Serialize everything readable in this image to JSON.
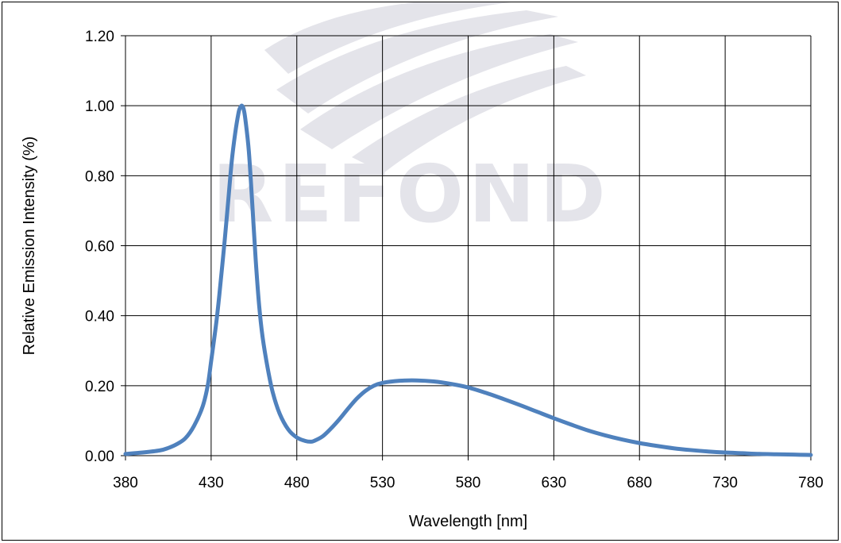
{
  "watermark": {
    "logo_text": "REFOND",
    "color": "#e4e4ea"
  },
  "chart_data": {
    "type": "line",
    "title": "",
    "xlabel": "Wavelength  [nm]",
    "ylabel": "Relative Emission Intensity (%)",
    "xlim": [
      380,
      780
    ],
    "ylim": [
      0,
      1.2
    ],
    "x_ticks": [
      "380",
      "430",
      "480",
      "530",
      "580",
      "630",
      "680",
      "730",
      "780"
    ],
    "y_ticks": [
      "0.00",
      "0.20",
      "0.40",
      "0.60",
      "0.80",
      "1.00",
      "1.20"
    ],
    "grid": true,
    "legend": "none",
    "series": [
      {
        "color": "#4f81bd",
        "x": [
          380,
          390,
          400,
          405,
          410,
          415,
          420,
          425,
          428,
          430,
          433,
          435,
          438,
          440,
          442,
          444,
          446,
          447,
          448,
          449,
          450,
          452,
          454,
          456,
          458,
          460,
          463,
          466,
          470,
          475,
          480,
          485,
          488,
          490,
          495,
          500,
          505,
          510,
          515,
          520,
          525,
          530,
          540,
          550,
          560,
          570,
          580,
          590,
          600,
          610,
          620,
          630,
          640,
          650,
          660,
          670,
          680,
          690,
          700,
          710,
          720,
          730,
          740,
          750,
          760,
          770,
          780
        ],
        "y": [
          0.005,
          0.009,
          0.015,
          0.022,
          0.033,
          0.05,
          0.085,
          0.14,
          0.2,
          0.27,
          0.38,
          0.47,
          0.62,
          0.73,
          0.84,
          0.92,
          0.98,
          0.995,
          1.0,
          0.99,
          0.96,
          0.87,
          0.72,
          0.56,
          0.43,
          0.34,
          0.25,
          0.18,
          0.12,
          0.075,
          0.052,
          0.042,
          0.04,
          0.042,
          0.055,
          0.078,
          0.105,
          0.135,
          0.163,
          0.185,
          0.2,
          0.208,
          0.214,
          0.215,
          0.212,
          0.205,
          0.195,
          0.18,
          0.163,
          0.145,
          0.126,
          0.107,
          0.089,
          0.072,
          0.058,
          0.046,
          0.036,
          0.028,
          0.021,
          0.016,
          0.012,
          0.009,
          0.007,
          0.005,
          0.004,
          0.003,
          0.002
        ]
      }
    ]
  }
}
